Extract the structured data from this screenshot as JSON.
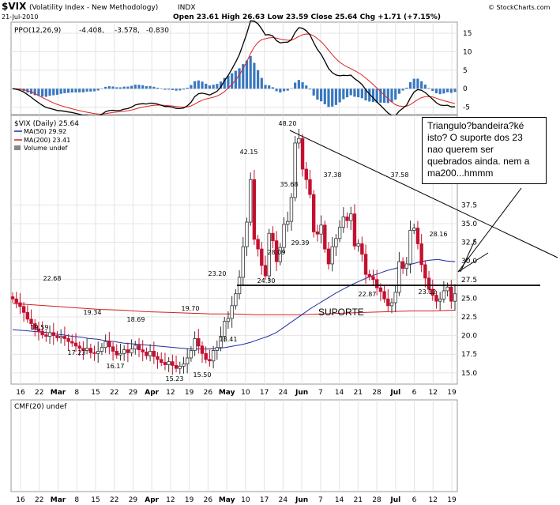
{
  "header": {
    "symbol": "$VIX",
    "name": "(Volatility Index - New Methodology)",
    "exchange": "INDX",
    "date": "21-Jul-2010",
    "quote": "Open 23.61  High 26.63  Low 23.59  Close 25.64  Chg +1.71 (+7.15%)",
    "watermark": "© StockCharts.com"
  },
  "ppo": {
    "label": "PPO(12,26,9)",
    "v1": "-4.408,",
    "v2": "-3.578,",
    "v3": "-0.830",
    "colors": {
      "ppo": "#000000",
      "signal": "#e02020",
      "hist": "#3a78c0"
    },
    "yticks": [
      "15",
      "10",
      "5",
      "0",
      "-5"
    ],
    "ylim": [
      -7,
      18
    ]
  },
  "main": {
    "label": "$VIX (Daily) 25.64",
    "ma50": "MA(50) 29.92",
    "ma200": "MA(200) 23.41",
    "volume": "Volume undef",
    "yticks": [
      "37.5",
      "35.0",
      "32.5",
      "30.0",
      "27.5",
      "25.0",
      "22.5",
      "20.0",
      "17.5",
      "15.0"
    ],
    "ylim": [
      13.5,
      49.5
    ]
  },
  "cmf": {
    "label": "CMF(20) undef"
  },
  "xaxis": {
    "labels": [
      "16",
      "22",
      "Mar",
      "8",
      "15",
      "22",
      "29",
      "Apr",
      "12",
      "19",
      "26",
      "May",
      "10",
      "17",
      "24",
      "Jun",
      "7",
      "14",
      "21",
      "28",
      "Jul",
      "6",
      "12",
      "19"
    ]
  },
  "annotations": {
    "box": "Triangulo?bandeira?ké isto? O suporte dos 23 nao querem ser quebrados ainda. nem a ma200...hmmm",
    "support": "SUPORTE"
  },
  "chart_data": {
    "type": "candlestick",
    "title": "$VIX (Daily) 25.64",
    "labels": [
      {
        "text": "48.20",
        "y": 48.2
      },
      {
        "text": "42.15",
        "y": 42.15
      },
      {
        "text": "37.38",
        "y": 37.38
      },
      {
        "text": "37.58",
        "y": 37.58
      },
      {
        "text": "35.68",
        "y": 35.68
      },
      {
        "text": "29.39",
        "y": 29.39
      },
      {
        "text": "28.09",
        "y": 28.09
      },
      {
        "text": "28.16",
        "y": 28.16
      },
      {
        "text": "24.30",
        "y": 24.3
      },
      {
        "text": "23.20",
        "y": 23.2
      },
      {
        "text": "23.12",
        "y": 23.12
      },
      {
        "text": "22.87",
        "y": 22.87
      },
      {
        "text": "22.68",
        "y": 22.68
      },
      {
        "text": "19.70",
        "y": 19.7
      },
      {
        "text": "19.59",
        "y": 19.59
      },
      {
        "text": "19.34",
        "y": 19.34
      },
      {
        "text": "18.69",
        "y": 18.69
      },
      {
        "text": "18.41",
        "y": 18.41
      },
      {
        "text": "17.23",
        "y": 17.23
      },
      {
        "text": "16.17",
        "y": 16.17
      },
      {
        "text": "15.50",
        "y": 15.5
      },
      {
        "text": "15.23",
        "y": 15.23
      }
    ],
    "close": [
      24.9,
      24.4,
      23.9,
      23.1,
      22.2,
      21.6,
      20.9,
      20.6,
      20.1,
      19.9,
      20.4,
      20.0,
      19.7,
      19.9,
      19.6,
      19.2,
      19.0,
      18.6,
      18.3,
      18.0,
      18.3,
      17.7,
      17.6,
      17.9,
      18.4,
      19.2,
      18.5,
      17.9,
      17.4,
      17.6,
      18.1,
      17.7,
      18.2,
      18.7,
      18.1,
      17.8,
      17.3,
      17.9,
      17.2,
      16.8,
      16.4,
      16.1,
      16.5,
      16.0,
      15.6,
      15.9,
      16.2,
      17.0,
      18.0,
      19.6,
      18.6,
      17.6,
      16.8,
      16.6,
      18.0,
      18.4,
      19.9,
      21.9,
      22.3,
      24.0,
      25.6,
      27.8,
      31.9,
      35.2,
      40.9,
      32.9,
      31.6,
      29.4,
      28.0,
      33.7,
      32.7,
      29.9,
      31.8,
      34.9,
      35.3,
      38.5,
      45.8,
      46.4,
      42.3,
      40.9,
      38.9,
      33.9,
      33.6,
      34.8,
      31.6,
      29.6,
      31.9,
      33.0,
      34.5,
      35.9,
      35.4,
      36.3,
      32.0,
      32.3,
      30.9,
      28.2,
      27.9,
      27.5,
      26.4,
      25.9,
      24.9,
      24.0,
      24.4,
      25.8,
      29.9,
      29.0,
      29.6,
      34.1,
      34.4,
      32.3,
      29.5,
      27.7,
      26.2,
      25.4,
      24.6,
      24.9,
      26.0,
      26.5,
      24.6,
      25.6
    ],
    "ma50": [
      20.8,
      20.7,
      20.6,
      20.5,
      20.4,
      20.2,
      20.1,
      19.9,
      19.8,
      19.6,
      19.5,
      19.3,
      19.2,
      19.0,
      18.9,
      18.8,
      18.7,
      18.6,
      18.5,
      18.4,
      18.3,
      18.2,
      18.2,
      18.2,
      18.3,
      18.4,
      18.6,
      18.8,
      19.1,
      19.5,
      19.9,
      20.4,
      21.2,
      22.0,
      22.8,
      23.6,
      24.3,
      25.0,
      25.7,
      26.3,
      26.9,
      27.4,
      27.9,
      28.3,
      28.7,
      29.0,
      29.3,
      29.6,
      29.9,
      30.1,
      30.2,
      30.0,
      29.9
    ],
    "ma200": [
      24.3,
      24.1,
      23.9,
      23.7,
      23.5,
      23.4,
      23.2,
      23.1,
      23.0,
      22.9,
      22.9,
      22.8,
      22.8,
      22.8,
      22.9,
      23.0,
      23.1,
      23.2,
      23.3,
      23.3,
      23.4
    ],
    "trendlines": [
      {
        "name": "resistance",
        "from": [
          48.2
        ],
        "to": [
          25.5
        ]
      },
      {
        "name": "support",
        "level": 22.6
      }
    ]
  }
}
